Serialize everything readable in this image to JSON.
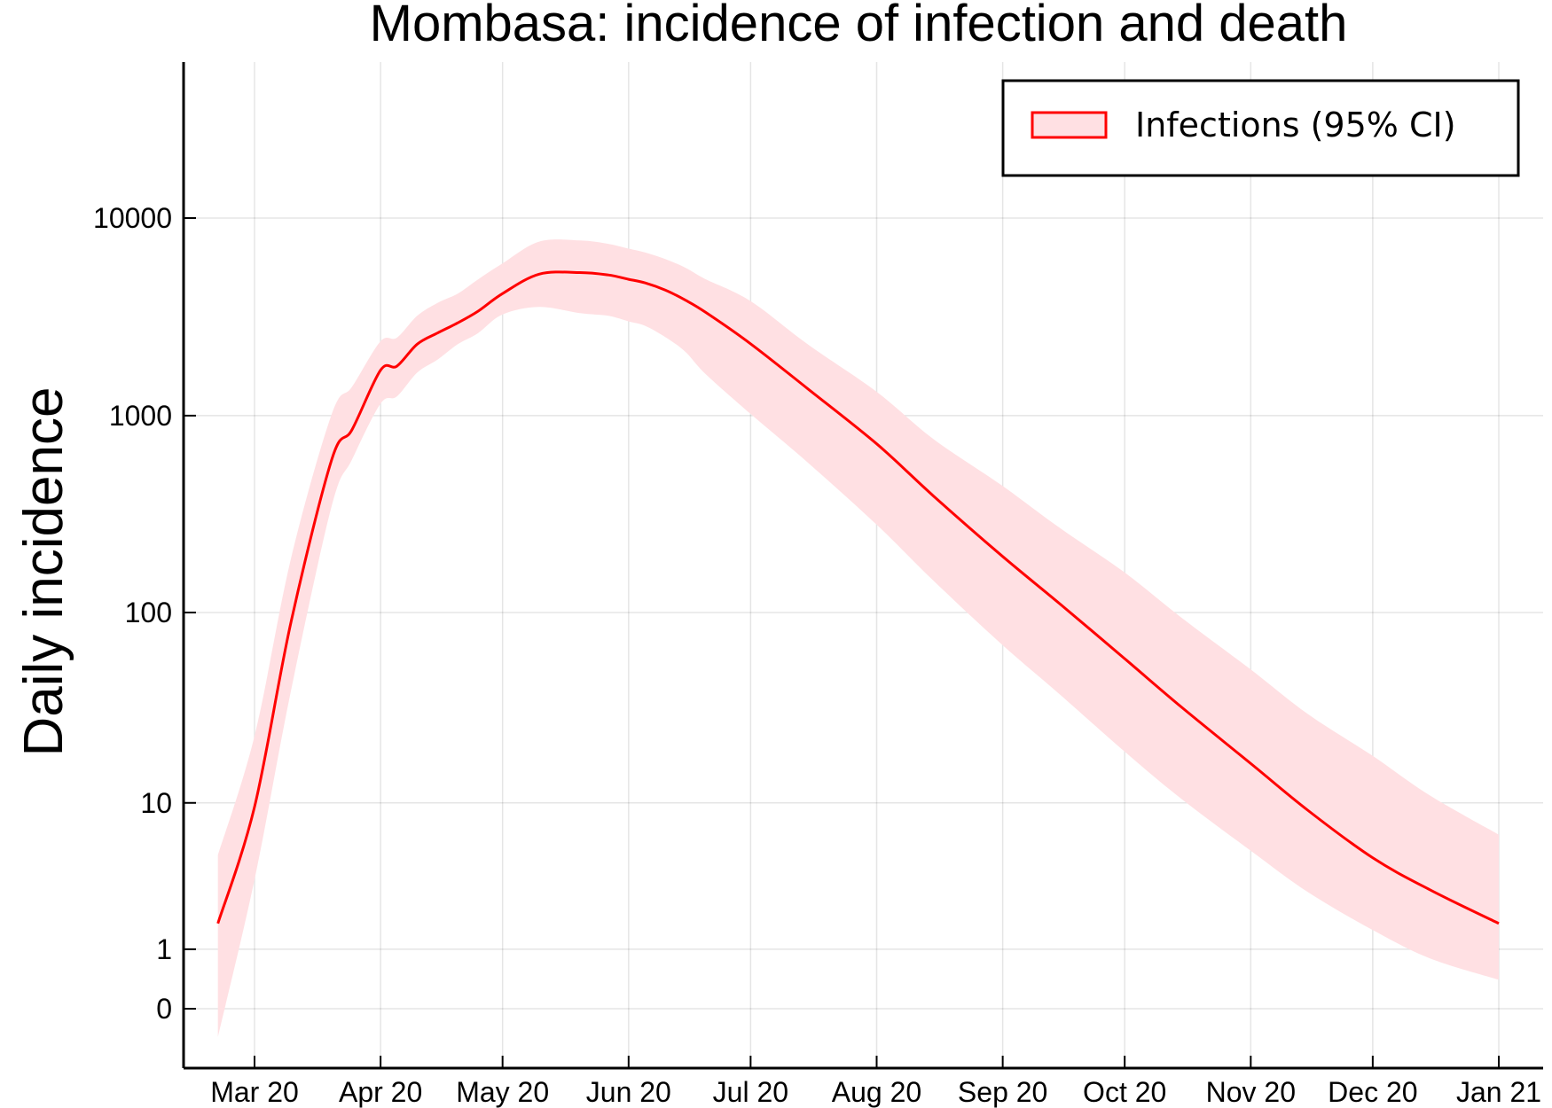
{
  "chart_data": {
    "type": "area",
    "title": "Mombasa: incidence of infection and death",
    "xlabel": "",
    "ylabel": "Daily incidence",
    "x_ticks": [
      "Mar 20",
      "Apr 20",
      "May 20",
      "Jun 20",
      "Jul 20",
      "Aug 20",
      "Sep 20",
      "Oct 20",
      "Nov 20",
      "Dec 20",
      "Jan 21"
    ],
    "y_ticks": [
      {
        "label": "0",
        "value": 0
      },
      {
        "label": "1",
        "value": 1
      },
      {
        "label": "10",
        "value": 10
      },
      {
        "label": "100",
        "value": 100
      },
      {
        "label": "1000",
        "value": 1000
      },
      {
        "label": "10000",
        "value": 10000
      }
    ],
    "y_scale": "log(1+y)",
    "grid": true,
    "legend_position": "top-right",
    "series": [
      {
        "name": "Infections (95% CI)",
        "color": "#ff0000",
        "band_color": "#ffe0e3",
        "x": [
          "2020-02-21",
          "2020-03-01",
          "2020-03-10",
          "2020-03-20",
          "2020-03-25",
          "2020-04-01",
          "2020-04-05",
          "2020-04-10",
          "2020-04-15",
          "2020-04-20",
          "2020-04-25",
          "2020-05-01",
          "2020-05-10",
          "2020-05-20",
          "2020-05-27",
          "2020-06-01",
          "2020-06-05",
          "2020-06-10",
          "2020-06-15",
          "2020-06-20",
          "2020-07-01",
          "2020-07-15",
          "2020-08-01",
          "2020-08-15",
          "2020-09-01",
          "2020-09-15",
          "2020-10-01",
          "2020-10-15",
          "2020-11-01",
          "2020-11-15",
          "2020-12-01",
          "2020-12-15",
          "2021-01-01"
        ],
        "values": [
          1.7,
          9.5,
          90,
          600,
          850,
          1700,
          1780,
          2300,
          2620,
          2950,
          3380,
          4150,
          5200,
          5300,
          5150,
          4900,
          4700,
          4320,
          3840,
          3330,
          2310,
          1370,
          720,
          391,
          193,
          111,
          58,
          32.5,
          16.4,
          9.1,
          4.8,
          3.0,
          1.7
        ],
        "lower": [
          -0.6,
          3.5,
          40,
          350,
          600,
          1150,
          1250,
          1650,
          1920,
          2300,
          2620,
          3250,
          3550,
          3300,
          3200,
          3000,
          2850,
          2500,
          2100,
          1620,
          1020,
          580,
          280,
          145,
          68,
          38,
          19,
          10.5,
          5.3,
          2.9,
          1.5,
          0.8,
          0.4
        ],
        "upper": [
          5,
          23,
          190,
          1020,
          1400,
          2380,
          2480,
          3200,
          3720,
          4150,
          4900,
          5900,
          7600,
          7700,
          7400,
          7000,
          6700,
          6200,
          5600,
          4900,
          3800,
          2300,
          1320,
          760,
          440,
          270,
          160,
          94,
          51,
          30,
          18,
          11,
          6.6
        ]
      }
    ]
  }
}
